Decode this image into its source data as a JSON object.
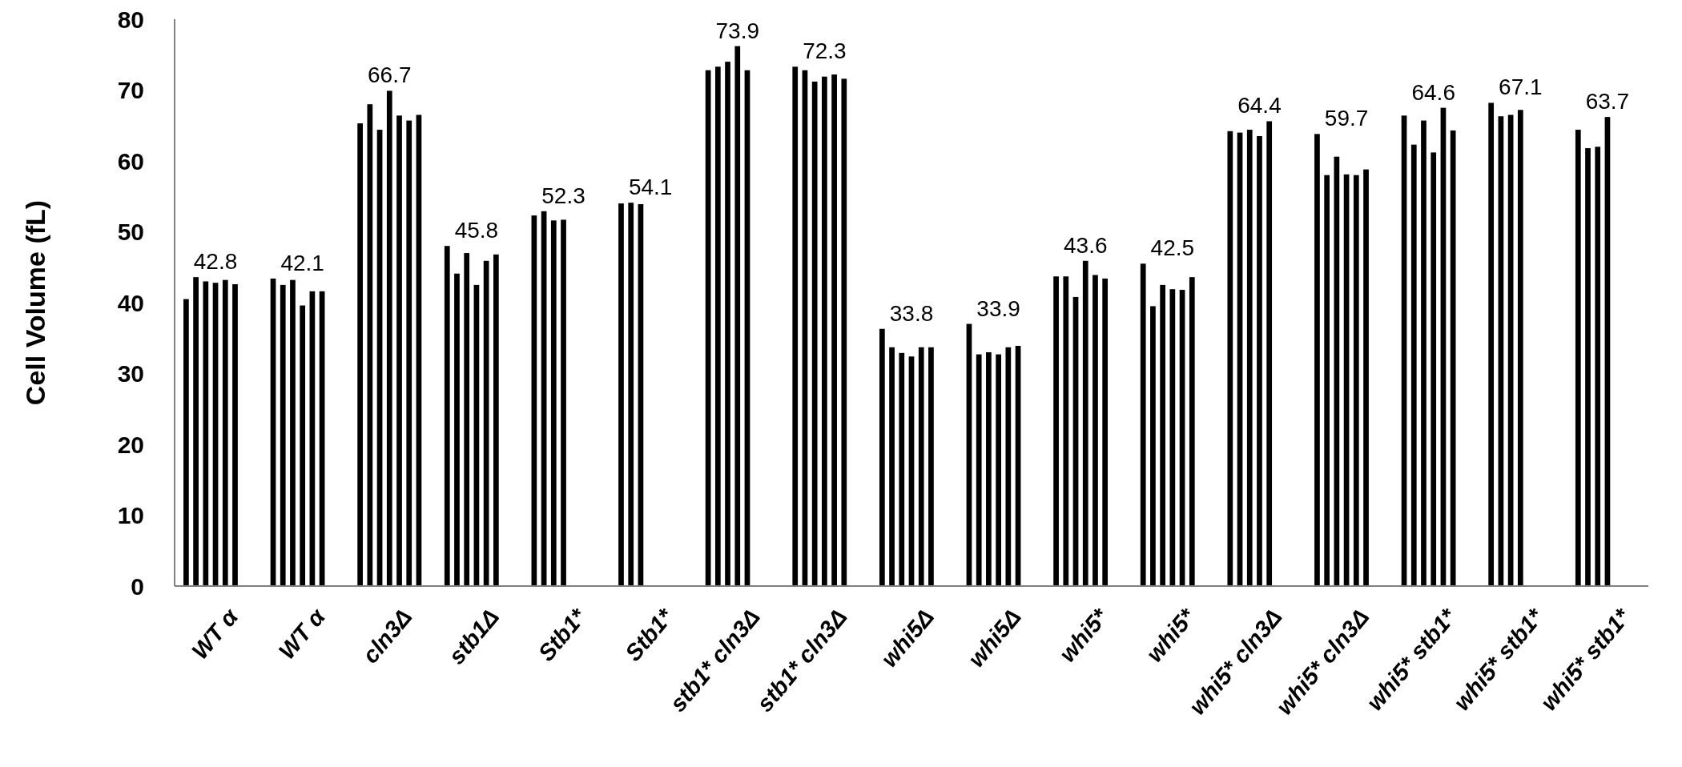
{
  "chart_data": {
    "type": "bar",
    "ylabel": "Cell Volume (fL)",
    "categories": [
      "WT α",
      "WT α",
      "cln3Δ",
      "stb1Δ",
      "Stb1*",
      "Stb1*",
      "stb1* cln3Δ",
      "stb1* cln3Δ",
      "whi5Δ",
      "whi5Δ",
      "whi5*",
      "whi5*",
      "whi5* cln3Δ",
      "whi5* cln3Δ",
      "whi5* stb1*",
      "whi5* stb1*",
      "whi5* stb1*"
    ],
    "series": [
      {
        "color": "#000000",
        "values": [
          40.5,
          43.4,
          65.3,
          48.0,
          52.3,
          54.0,
          72.8,
          73.3,
          36.3,
          37.0,
          43.7,
          45.5,
          64.2,
          63.8,
          66.4,
          68.2,
          64.4
        ]
      },
      {
        "color": "#000000",
        "values": [
          43.6,
          42.5,
          68.0,
          44.1,
          52.9,
          54.1,
          73.3,
          72.8,
          33.7,
          32.7,
          43.7,
          39.5,
          64.0,
          58.0,
          62.3,
          66.3,
          61.8
        ]
      },
      {
        "color": "#000000",
        "values": [
          43.0,
          43.2,
          64.4,
          47.0,
          51.6,
          53.9,
          74.0,
          71.2,
          32.9,
          33.0,
          40.8,
          42.5,
          64.4,
          60.6,
          65.7,
          66.5,
          62.0
        ]
      },
      {
        "color": "#000000",
        "values": [
          42.8,
          39.6,
          69.9,
          42.5,
          51.7,
          null,
          76.2,
          71.9,
          32.4,
          32.7,
          45.9,
          41.9,
          63.5,
          58.1,
          61.2,
          67.2,
          66.2
        ]
      },
      {
        "color": "#000000",
        "values": [
          43.2,
          41.6,
          66.4,
          45.9,
          null,
          null,
          72.8,
          72.2,
          33.7,
          33.7,
          43.9,
          41.8,
          65.6,
          58.0,
          67.5,
          null,
          null
        ]
      },
      {
        "color": "#000000",
        "values": [
          42.6,
          41.6,
          65.7,
          46.8,
          null,
          null,
          null,
          71.6,
          33.7,
          33.9,
          43.4,
          43.6,
          null,
          58.8,
          64.3,
          null,
          null
        ]
      },
      {
        "color": "#000000",
        "values": [
          null,
          null,
          66.5,
          null,
          null,
          null,
          null,
          null,
          null,
          null,
          null,
          null,
          null,
          null,
          null,
          null,
          null
        ]
      }
    ],
    "annotations": [
      "42.8",
      "42.1",
      "66.7",
      "45.8",
      "52.3",
      "54.1",
      "73.9",
      "72.3",
      "33.8",
      "33.9",
      "43.6",
      "42.5",
      "64.4",
      "59.7",
      "64.6",
      "67.1",
      "63.7"
    ],
    "ylim": [
      0,
      80
    ],
    "yticks": [
      0,
      10,
      20,
      30,
      40,
      50,
      60,
      70,
      80
    ],
    "grid": false
  }
}
